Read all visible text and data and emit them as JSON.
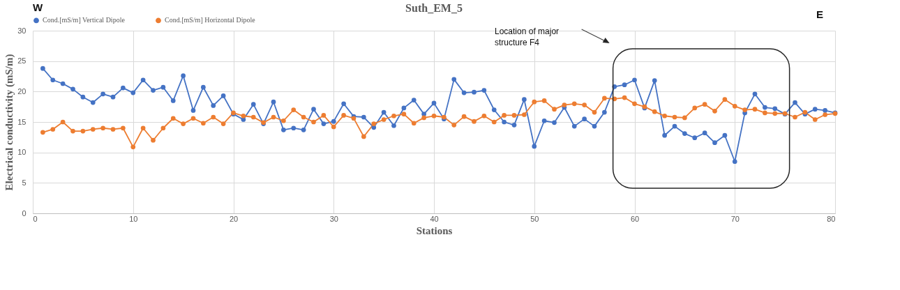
{
  "chart_data": {
    "type": "line",
    "title": "Suth_EM_5",
    "xlabel": "Stations",
    "ylabel": "Electrical conductivity (mS/m)",
    "x": [
      1,
      2,
      3,
      4,
      5,
      6,
      7,
      8,
      9,
      10,
      11,
      12,
      13,
      14,
      15,
      16,
      17,
      18,
      19,
      20,
      21,
      22,
      23,
      24,
      25,
      26,
      27,
      28,
      29,
      30,
      31,
      32,
      33,
      34,
      35,
      36,
      37,
      38,
      39,
      40,
      41,
      42,
      43,
      44,
      45,
      46,
      47,
      48,
      49,
      50,
      51,
      52,
      53,
      54,
      55,
      56,
      57,
      58,
      59,
      60,
      61,
      62,
      63,
      64,
      65,
      66,
      67,
      68,
      69,
      70,
      71,
      72,
      73,
      74,
      75,
      76,
      77,
      78,
      79,
      80
    ],
    "series": [
      {
        "name": "Cond.[mS/m] Vertical Dipole",
        "color": "#4472c4",
        "values": [
          23.8,
          21.9,
          21.3,
          20.4,
          19.1,
          18.2,
          19.6,
          19.1,
          20.6,
          19.8,
          21.9,
          20.2,
          20.7,
          18.5,
          22.6,
          16.9,
          20.7,
          17.7,
          19.3,
          16.3,
          15.4,
          17.9,
          14.7,
          18.3,
          13.7,
          14.0,
          13.7,
          17.1,
          14.7,
          15.1,
          18.0,
          15.9,
          15.8,
          14.1,
          16.6,
          14.4,
          17.3,
          18.6,
          16.3,
          18.1,
          15.5,
          22.0,
          19.8,
          19.9,
          20.2,
          17.0,
          15.0,
          14.5,
          18.7,
          11.0,
          15.2,
          14.9,
          17.4,
          14.3,
          15.5,
          14.3,
          16.6,
          20.8,
          21.1,
          21.9,
          17.3,
          21.8,
          12.8,
          14.3,
          13.1,
          12.4,
          13.2,
          11.6,
          12.8,
          8.5,
          16.5,
          19.6,
          17.4,
          17.2,
          16.3,
          18.2,
          16.3,
          17.1,
          16.9,
          16.5
        ]
      },
      {
        "name": "Cond.[mS/m] Horizontal Dipole",
        "color": "#ed7d31",
        "values": [
          13.3,
          13.8,
          15.0,
          13.5,
          13.5,
          13.8,
          14.0,
          13.8,
          14.0,
          10.9,
          14.0,
          12.0,
          14.0,
          15.6,
          14.7,
          15.6,
          14.8,
          15.8,
          14.7,
          16.5,
          16.0,
          15.8,
          14.9,
          15.8,
          15.2,
          17.0,
          15.8,
          15.0,
          16.1,
          14.2,
          16.1,
          15.6,
          12.6,
          14.7,
          15.4,
          16.0,
          16.3,
          14.8,
          15.7,
          16.0,
          15.8,
          14.5,
          15.9,
          15.1,
          16.0,
          15.0,
          16.1,
          16.1,
          16.2,
          18.3,
          18.5,
          17.1,
          17.8,
          18.0,
          17.8,
          16.6,
          18.9,
          18.8,
          19.0,
          18.0,
          17.5,
          16.7,
          16.0,
          15.8,
          15.7,
          17.3,
          17.9,
          16.8,
          18.7,
          17.6,
          17.0,
          17.1,
          16.5,
          16.4,
          16.4,
          15.8,
          16.6,
          15.4,
          16.2,
          16.4
        ]
      }
    ],
    "xlim": [
      0,
      80
    ],
    "xticks": [
      0,
      10,
      20,
      30,
      40,
      50,
      60,
      70,
      80
    ],
    "ylim": [
      0,
      30
    ],
    "yticks": [
      0,
      5,
      10,
      15,
      20,
      25,
      30
    ],
    "grid": true,
    "legend": "top",
    "marker": "circle",
    "line_style": "solid",
    "annotations": [
      "W",
      "E",
      "Location of major structure F4"
    ]
  }
}
